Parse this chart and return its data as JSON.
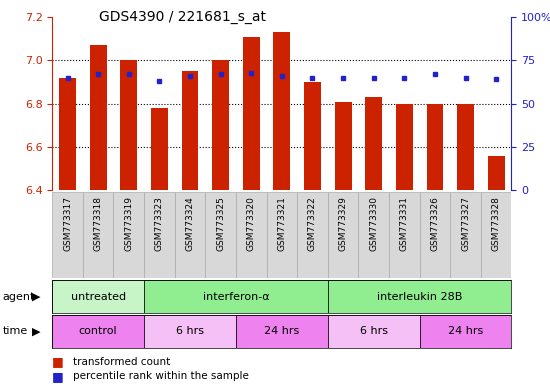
{
  "title": "GDS4390 / 221681_s_at",
  "samples": [
    "GSM773317",
    "GSM773318",
    "GSM773319",
    "GSM773323",
    "GSM773324",
    "GSM773325",
    "GSM773320",
    "GSM773321",
    "GSM773322",
    "GSM773329",
    "GSM773330",
    "GSM773331",
    "GSM773326",
    "GSM773327",
    "GSM773328"
  ],
  "red_values": [
    6.92,
    7.07,
    7.0,
    6.78,
    6.95,
    7.0,
    7.11,
    7.13,
    6.9,
    6.81,
    6.83,
    6.8,
    6.8,
    6.8,
    6.56
  ],
  "blue_pct": [
    65,
    67,
    67,
    63,
    66,
    67,
    68,
    66,
    65,
    65,
    65,
    65,
    67,
    65,
    64
  ],
  "ylim_left": [
    6.4,
    7.2
  ],
  "ylim_right": [
    0,
    100
  ],
  "yticks_left": [
    6.4,
    6.6,
    6.8,
    7.0,
    7.2
  ],
  "yticks_right": [
    0,
    25,
    50,
    75,
    100
  ],
  "grid_lines": [
    6.6,
    6.8,
    7.0
  ],
  "bar_color": "#cc2200",
  "dot_color": "#2222cc",
  "left_axis_color": "#cc2200",
  "right_axis_color": "#2222cc",
  "agent_items": [
    {
      "start": 0,
      "end": 3,
      "label": "untreated",
      "color": "#c8f5c8"
    },
    {
      "start": 3,
      "end": 9,
      "label": "interferon-α",
      "color": "#90ee90"
    },
    {
      "start": 9,
      "end": 15,
      "label": "interleukin 28B",
      "color": "#90ee90"
    }
  ],
  "time_items": [
    {
      "start": 0,
      "end": 3,
      "label": "control",
      "color": "#ee82ee"
    },
    {
      "start": 3,
      "end": 6,
      "label": "6 hrs",
      "color": "#f5c0f5"
    },
    {
      "start": 6,
      "end": 9,
      "label": "24 hrs",
      "color": "#ee82ee"
    },
    {
      "start": 9,
      "end": 12,
      "label": "6 hrs",
      "color": "#f5c0f5"
    },
    {
      "start": 12,
      "end": 15,
      "label": "24 hrs",
      "color": "#ee82ee"
    }
  ],
  "legend": [
    {
      "color": "#cc2200",
      "label": "transformed count"
    },
    {
      "color": "#2222cc",
      "label": "percentile rank within the sample"
    }
  ]
}
